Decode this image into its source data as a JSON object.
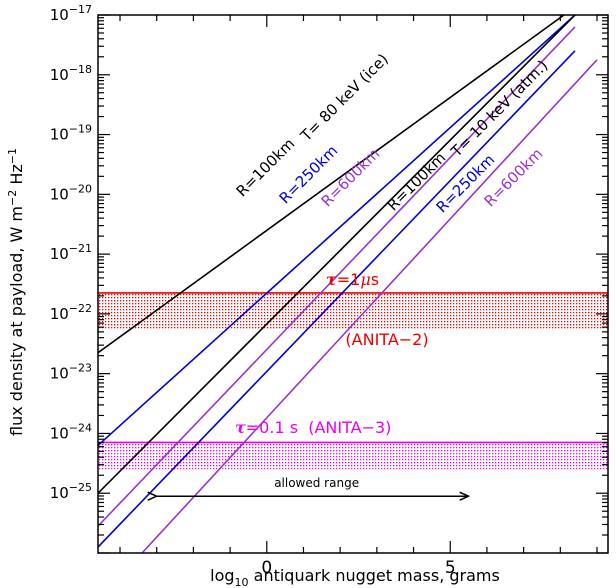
{
  "chart_data": {
    "type": "line",
    "title": "",
    "xlabel": "log10 antiquark nugget mass, grams",
    "xlabel_parts": {
      "pre": "log",
      "sub": "10",
      "post": " antiquark nugget mass, grams"
    },
    "ylabel": "flux density at payload, W m-2 Hz-1",
    "ylabel_parts": {
      "pre": "flux density at payload, W m",
      "sup1": "−2",
      "mid": " Hz",
      "sup2": "−1"
    },
    "xlim": [
      -4.6,
      9.3
    ],
    "ylim": [
      -26.0,
      -17.0
    ],
    "log_y": true,
    "x_ticks": [
      {
        "value": 0,
        "label": "0"
      },
      {
        "value": 5,
        "label": "5"
      }
    ],
    "y_ticks": [
      {
        "value": -17,
        "base": "10",
        "exp": "−17"
      },
      {
        "value": -18,
        "base": "10",
        "exp": "−18"
      },
      {
        "value": -19,
        "base": "10",
        "exp": "−19"
      },
      {
        "value": -20,
        "base": "10",
        "exp": "−20"
      },
      {
        "value": -21,
        "base": "10",
        "exp": "−21"
      },
      {
        "value": -22,
        "base": "10",
        "exp": "−22"
      },
      {
        "value": -23,
        "base": "10",
        "exp": "−23"
      },
      {
        "value": -24,
        "base": "10",
        "exp": "−24"
      },
      {
        "value": -25,
        "base": "10",
        "exp": "−25"
      }
    ],
    "series": [
      {
        "label": "R=100km",
        "group": "80 keV",
        "color": "#000000",
        "points": [
          [
            -4.6,
            -22.65
          ],
          [
            8.1,
            -17.0
          ]
        ]
      },
      {
        "label": "R=250km",
        "group": "80 keV",
        "color": "#0000dd",
        "points": [
          [
            -4.6,
            -24.2
          ],
          [
            8.4,
            -17.0
          ]
        ]
      },
      {
        "label": "R=600km",
        "group": "80 keV",
        "color": "#9933cc",
        "points": [
          [
            -4.6,
            -25.55
          ],
          [
            8.4,
            -17.2
          ]
        ]
      },
      {
        "label": "R=100km",
        "group": "10 keV",
        "color": "#000000",
        "points": [
          [
            -4.6,
            -25.0
          ],
          [
            8.4,
            -17.0
          ]
        ]
      },
      {
        "label": "R=250km",
        "group": "10 keV",
        "color": "#0000dd",
        "points": [
          [
            -4.6,
            -25.9
          ],
          [
            8.4,
            -17.6
          ]
        ]
      },
      {
        "label": "R=600km",
        "group": "10 keV",
        "color": "#9933cc",
        "points": [
          [
            -3.4,
            -26.0
          ],
          [
            9.0,
            -17.75
          ]
        ]
      }
    ],
    "bands": [
      {
        "name": "ANITA-2",
        "color": "#ee0000",
        "line_y": -21.65,
        "band": [
          -22.25,
          -21.65
        ]
      },
      {
        "name": "ANITA-3",
        "color": "#ee00ee",
        "line_y": -24.15,
        "band": [
          -24.6,
          -24.15
        ]
      }
    ],
    "range_arrow": {
      "x1": -3.0,
      "x2": 5.5,
      "y": -25.05
    }
  },
  "annotations": {
    "temp_80": "T= 80 keV (ice)",
    "temp_10": "T= 10 keV (atm.)",
    "r100_a": "R=100km",
    "r250_a": "R=250km",
    "r600_a": "R=600km",
    "r100_b": "R=100km",
    "r250_b": "R=250km",
    "r600_b": "R=600km",
    "tau1_sym": "τ",
    "tau1_rest": "=1",
    "tau1_mu": "μ",
    "tau1_s": "s",
    "anita2": "(ANITA−2)",
    "tau2_sym": "τ",
    "tau2_rest": "=0.1 s  (ANITA−3)",
    "allowed": "allowed range"
  }
}
